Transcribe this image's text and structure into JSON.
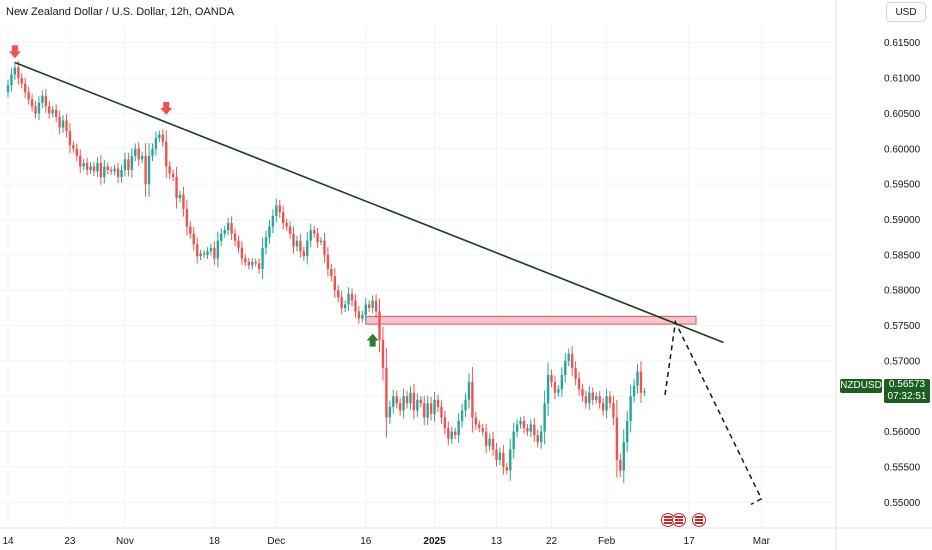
{
  "header": {
    "title": "New Zealand Dollar / U.S. Dollar, 12h, OANDA",
    "currency_button": "USD"
  },
  "price_scale": {
    "symbol_badge": "NZDUSD",
    "last_price": "0.56573",
    "countdown": "07:32:51"
  },
  "colors": {
    "up": "#26a69a",
    "down": "#ef5350",
    "trendline": "#1b3d1b",
    "zone_fill": "#f5c6c9",
    "zone_border": "#e0555f",
    "arrow_down": "#ef5350",
    "arrow_up": "#2e7d32",
    "badge": "#1b5e20"
  },
  "chart_data": {
    "type": "candlestick",
    "symbol": "NZDUSD",
    "interval": "12h",
    "ylim": [
      0.5475,
      0.6175
    ],
    "y_ticks": [
      "0.61500",
      "0.61000",
      "0.60500",
      "0.60000",
      "0.59500",
      "0.59000",
      "0.58500",
      "0.58000",
      "0.57500",
      "0.57000",
      "0.56500",
      "0.56000",
      "0.55500",
      "0.55000"
    ],
    "x_ticks": [
      {
        "label": "14",
        "i": 0
      },
      {
        "label": "23",
        "i": 18
      },
      {
        "label": "Nov",
        "i": 34
      },
      {
        "label": "18",
        "i": 60
      },
      {
        "label": "Dec",
        "i": 78
      },
      {
        "label": "16",
        "i": 104
      },
      {
        "label": "2025",
        "i": 124
      },
      {
        "label": "13",
        "i": 142
      },
      {
        "label": "22",
        "i": 158
      },
      {
        "label": "Feb",
        "i": 174
      },
      {
        "label": "17",
        "i": 198
      },
      {
        "label": "Mar",
        "i": 219
      }
    ],
    "closes": [
      0.609,
      0.6105,
      0.6115,
      0.61,
      0.6092,
      0.608,
      0.607,
      0.606,
      0.605,
      0.6065,
      0.6075,
      0.606,
      0.605,
      0.6055,
      0.6045,
      0.603,
      0.604,
      0.6025,
      0.6005,
      0.6,
      0.599,
      0.5975,
      0.598,
      0.597,
      0.5975,
      0.5968,
      0.598,
      0.596,
      0.5975,
      0.597,
      0.5968,
      0.5972,
      0.596,
      0.597,
      0.5985,
      0.597,
      0.599,
      0.6,
      0.5985,
      0.599,
      0.595,
      0.599,
      0.6,
      0.6015,
      0.602,
      0.601,
      0.5975,
      0.5965,
      0.596,
      0.593,
      0.5935,
      0.5915,
      0.589,
      0.588,
      0.5865,
      0.5848,
      0.5852,
      0.585,
      0.5855,
      0.586,
      0.5845,
      0.587,
      0.588,
      0.5885,
      0.5895,
      0.588,
      0.587,
      0.586,
      0.5845,
      0.584,
      0.5835,
      0.584,
      0.5838,
      0.583,
      0.586,
      0.5875,
      0.589,
      0.5905,
      0.592,
      0.591,
      0.5895,
      0.589,
      0.588,
      0.5862,
      0.587,
      0.5855,
      0.5848,
      0.587,
      0.5885,
      0.588,
      0.5868,
      0.587,
      0.585,
      0.583,
      0.582,
      0.58,
      0.579,
      0.5775,
      0.578,
      0.5795,
      0.5785,
      0.577,
      0.576,
      0.5765,
      0.578,
      0.5775,
      0.5785,
      0.577,
      0.573,
      0.569,
      0.562,
      0.5635,
      0.565,
      0.564,
      0.563,
      0.565,
      0.564,
      0.5655,
      0.563,
      0.5645,
      0.564,
      0.562,
      0.564,
      0.5625,
      0.5645,
      0.5635,
      0.562,
      0.5605,
      0.559,
      0.56,
      0.5595,
      0.5615,
      0.563,
      0.5645,
      0.567,
      0.562,
      0.561,
      0.5605,
      0.56,
      0.558,
      0.559,
      0.5575,
      0.556,
      0.557,
      0.555,
      0.5545,
      0.5575,
      0.56,
      0.561,
      0.5615,
      0.5605,
      0.56,
      0.561,
      0.5595,
      0.5585,
      0.56,
      0.564,
      0.568,
      0.567,
      0.5655,
      0.566,
      0.568,
      0.57,
      0.571,
      0.569,
      0.5675,
      0.566,
      0.565,
      0.564,
      0.5655,
      0.5645,
      0.565,
      0.564,
      0.563,
      0.565,
      0.564,
      0.562,
      0.556,
      0.5545,
      0.5585,
      0.5615,
      0.565,
      0.5665,
      0.5685,
      0.5655,
      0.5657
    ],
    "trendline": {
      "from": {
        "i": 2,
        "price": 0.6122
      },
      "to": {
        "i": 208,
        "price": 0.5726
      }
    },
    "resistance_zone": {
      "i_start": 104,
      "i_end": 200,
      "top": 0.5763,
      "bottom": 0.5752
    },
    "projection_path": [
      {
        "i": 191,
        "price": 0.5652
      },
      {
        "i": 194,
        "price": 0.5755
      },
      {
        "i": 219,
        "price": 0.5505
      },
      {
        "i": 216,
        "price": 0.5497
      }
    ],
    "markers": [
      {
        "type": "arrow-down",
        "i": 2,
        "price": 0.6135
      },
      {
        "type": "arrow-down",
        "i": 46,
        "price": 0.6055
      },
      {
        "type": "arrow-up",
        "i": 106,
        "price": 0.573
      }
    ],
    "event_markers_i": [
      192,
      195,
      201
    ]
  }
}
